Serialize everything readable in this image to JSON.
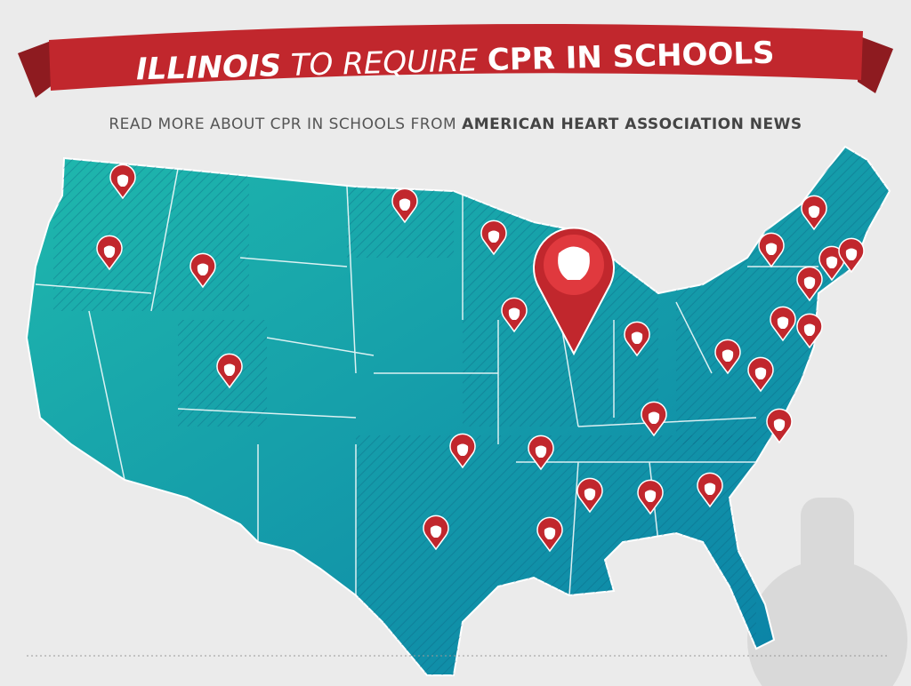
{
  "banner": {
    "lead": "ILLINOIS",
    "middle": "TO REQUIRE",
    "tail": "CPR IN SCHOOLS"
  },
  "subtitle": {
    "text": "READ MORE ABOUT CPR IN SCHOOLS FROM",
    "link": "AMERICAN HEART ASSOCIATION NEWS"
  }
}
